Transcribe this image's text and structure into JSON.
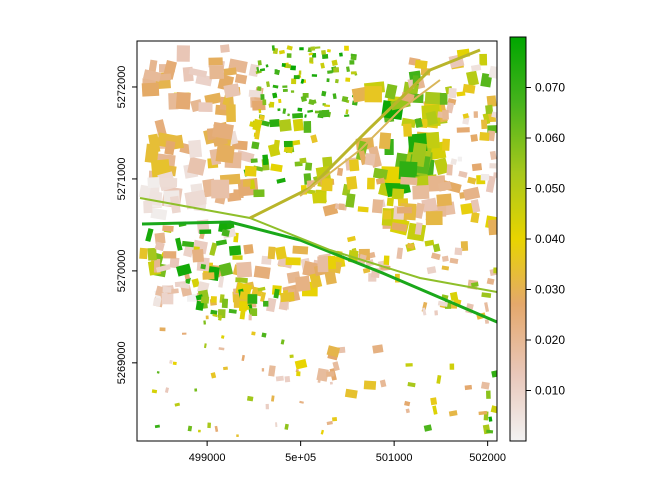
{
  "map": {
    "x_tick_labels": [
      "499000",
      "5e+05",
      "501000",
      "502000"
    ],
    "x_tick_values": [
      499000,
      500000,
      501000,
      502000
    ],
    "y_tick_labels": [
      "5269000",
      "5270000",
      "5271000",
      "5272000"
    ],
    "y_tick_values": [
      5269000,
      5270000,
      5271000,
      5272000
    ],
    "xlim": [
      498250,
      502100
    ],
    "ylim": [
      5268150,
      5272500
    ],
    "legend_position": "right"
  },
  "colorbar": {
    "labels": [
      "0.010",
      "0.020",
      "0.030",
      "0.040",
      "0.050",
      "0.060",
      "0.070"
    ],
    "values": [
      0.01,
      0.02,
      0.03,
      0.04,
      0.05,
      0.06,
      0.07
    ],
    "range": [
      0.0,
      0.08
    ],
    "stops": [
      {
        "value": 0.0,
        "color": "#f2f2f2"
      },
      {
        "value": 0.013,
        "color": "#e9c8bb"
      },
      {
        "value": 0.027,
        "color": "#e4a86c"
      },
      {
        "value": 0.04,
        "color": "#e8d400"
      },
      {
        "value": 0.053,
        "color": "#a8c81c"
      },
      {
        "value": 0.067,
        "color": "#46b31c"
      },
      {
        "value": 0.08,
        "color": "#00a600"
      }
    ]
  }
}
